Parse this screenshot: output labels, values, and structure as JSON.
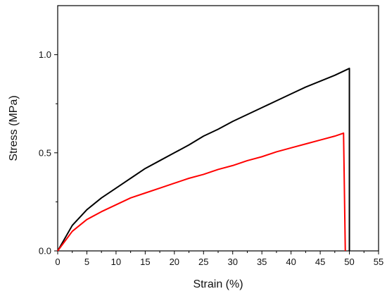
{
  "chart_data": {
    "type": "line",
    "title": "",
    "xlabel": "Strain (%)",
    "ylabel": "Stress (MPa)",
    "xlim": [
      0,
      55
    ],
    "ylim": [
      0,
      1.25
    ],
    "xticks": [
      0,
      5,
      10,
      15,
      20,
      25,
      30,
      35,
      40,
      45,
      50,
      55
    ],
    "xtick_labels": [
      "0",
      "5",
      "10",
      "15",
      "20",
      "25",
      "30",
      "35",
      "40",
      "45",
      "50",
      "55"
    ],
    "yticks": [
      0,
      0.5,
      1.0
    ],
    "ytick_labels": [
      "0.0",
      "0.5",
      "1.0"
    ],
    "grid": false,
    "legend": "none",
    "series": [
      {
        "color": "#000000",
        "x": [
          0,
          2.5,
          5,
          7.5,
          10,
          12.5,
          15,
          17.5,
          20,
          22.5,
          25,
          27.5,
          30,
          32.5,
          35,
          37.5,
          40,
          42.5,
          45,
          47.5,
          50,
          50
        ],
        "y": [
          0,
          0.13,
          0.21,
          0.27,
          0.32,
          0.37,
          0.42,
          0.46,
          0.5,
          0.54,
          0.585,
          0.62,
          0.66,
          0.695,
          0.73,
          0.765,
          0.8,
          0.835,
          0.865,
          0.895,
          0.93,
          0.0
        ]
      },
      {
        "color": "#ff0000",
        "x": [
          0,
          2.5,
          5,
          7.5,
          10,
          12.5,
          15,
          17.5,
          20,
          22.5,
          25,
          27.5,
          30,
          32.5,
          35,
          37.5,
          40,
          42.5,
          45,
          47.5,
          49,
          49.3
        ],
        "y": [
          0,
          0.1,
          0.16,
          0.2,
          0.235,
          0.27,
          0.295,
          0.32,
          0.345,
          0.37,
          0.39,
          0.415,
          0.435,
          0.46,
          0.48,
          0.505,
          0.525,
          0.545,
          0.565,
          0.585,
          0.6,
          0.0
        ]
      }
    ]
  }
}
